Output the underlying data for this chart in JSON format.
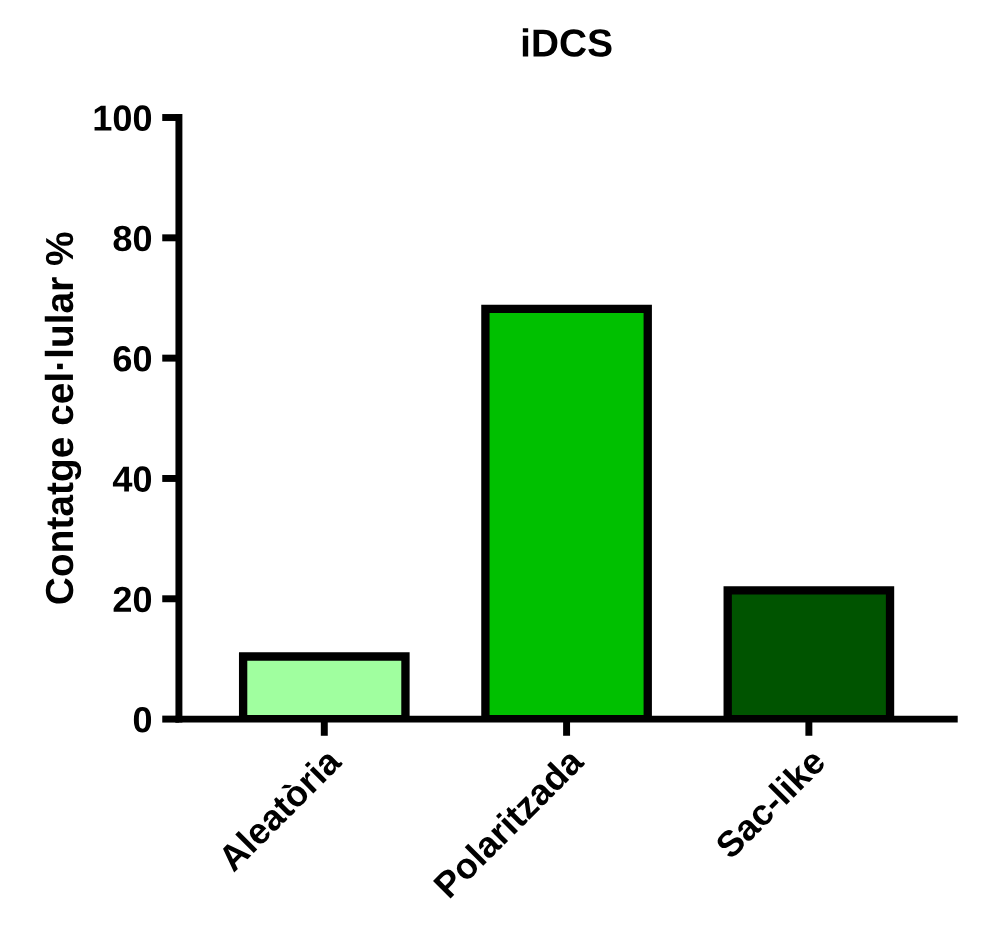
{
  "chart_data": {
    "type": "bar",
    "title": "iDCS",
    "ylabel": "Contatge cel·lular %",
    "categories": [
      "Aleatòria",
      "Polaritzada",
      "Sac-like"
    ],
    "values": [
      10.4,
      68.2,
      21.4
    ],
    "colors": [
      "#a0ff9f",
      "#00c000",
      "#005400"
    ],
    "ylim": [
      0,
      100
    ],
    "yticks": [
      0,
      20,
      40,
      60,
      80,
      100
    ],
    "grid": false
  }
}
